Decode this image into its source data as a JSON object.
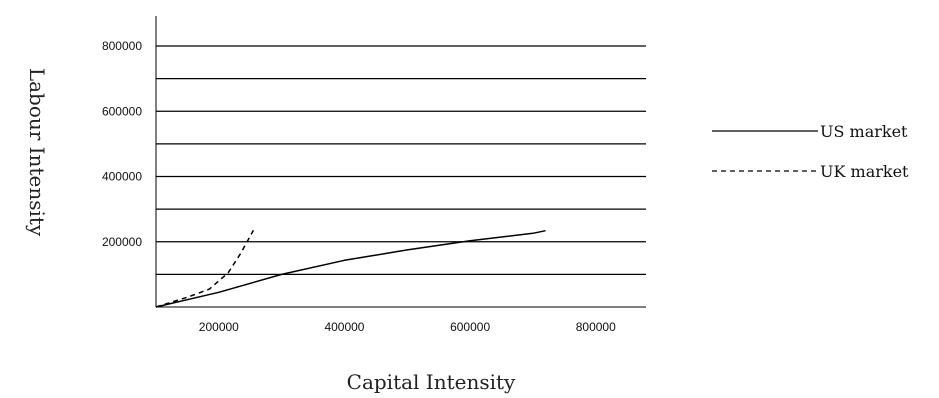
{
  "chart_data": {
    "type": "line",
    "xlabel": "Capital Intensity",
    "ylabel": "Labour Intensity",
    "x_ticks": [
      200000,
      400000,
      600000,
      800000
    ],
    "y_ticks": [
      200000,
      400000,
      600000,
      800000
    ],
    "y_tick_labels": [
      "200000",
      "400000",
      "600000",
      "800000"
    ],
    "x_tick_labels": [
      "200000",
      "400000",
      "600000",
      "800000"
    ],
    "xlim": [
      100000,
      880000
    ],
    "ylim": [
      0,
      800000
    ],
    "grid": true,
    "legend": "right",
    "series": [
      {
        "name": "US market",
        "style": "solid",
        "color": "#000000",
        "x": [
          100000,
          200000,
          300000,
          400000,
          500000,
          600000,
          700000,
          720000
        ],
        "y": [
          0,
          45000,
          100000,
          143000,
          175000,
          203000,
          226000,
          234000
        ]
      },
      {
        "name": "UK market",
        "style": "dashed",
        "color": "#000000",
        "x": [
          100000,
          150000,
          185000,
          215000,
          235000,
          255000
        ],
        "y": [
          0,
          30000,
          55000,
          105000,
          165000,
          235000
        ]
      }
    ]
  }
}
